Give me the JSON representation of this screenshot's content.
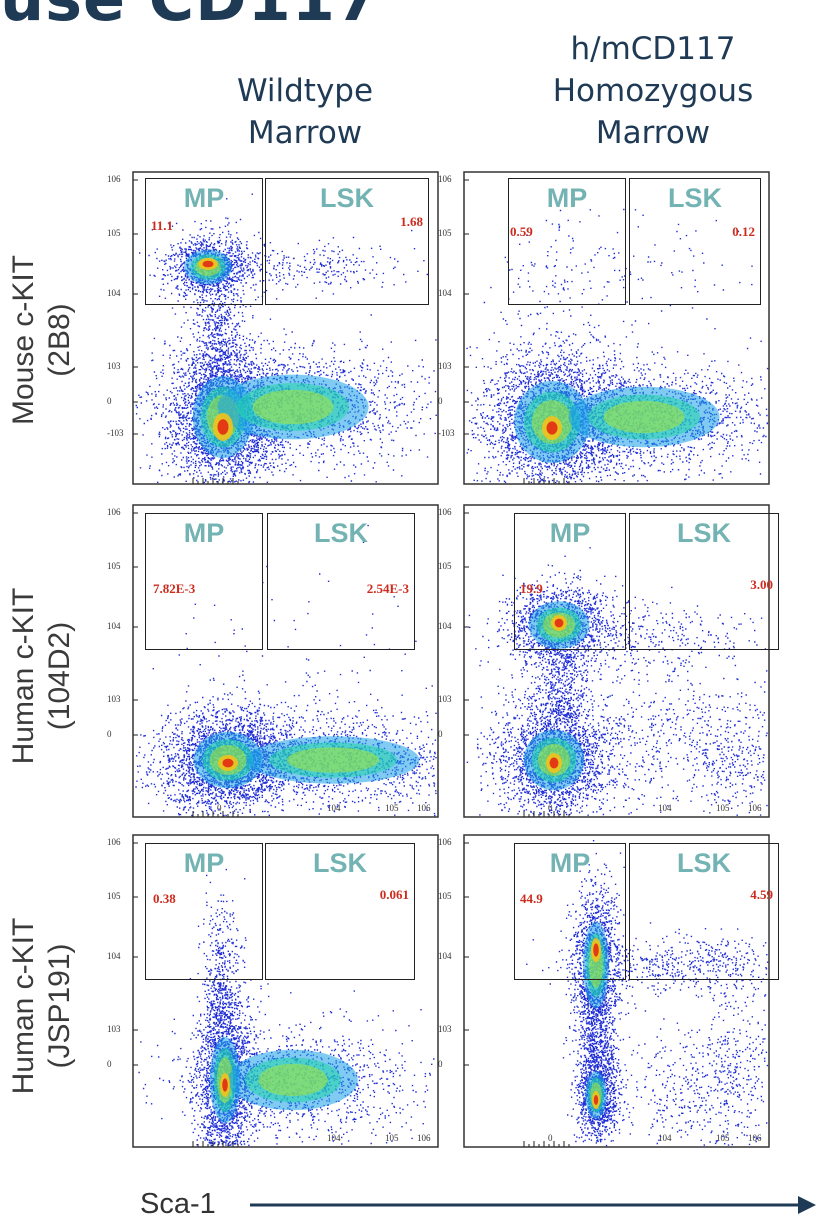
{
  "title_fragment": "use CD117",
  "columns": [
    {
      "lines": [
        "Wildtype",
        "Marrow"
      ]
    },
    {
      "lines": [
        "h/mCD117",
        "Homozygous",
        "Marrow"
      ]
    }
  ],
  "rows": [
    {
      "lines": [
        "Mouse c-KIT",
        "(2B8)"
      ]
    },
    {
      "lines": [
        "Human c-KIT",
        "(104D2)"
      ]
    },
    {
      "lines": [
        "Human c-KIT",
        "(JSP191)"
      ]
    }
  ],
  "x_axis_label": "Sca-1",
  "gate_names": {
    "mp": "MP",
    "lsk": "LSK"
  },
  "colors": {
    "title": "#1f3a55",
    "gate_label": "#74b3b3",
    "frequency": "#cc2b1d",
    "density_scale": [
      "#1f2dd6",
      "#1aa0e8",
      "#22d6a8",
      "#a6e33a",
      "#f2c21b",
      "#e22a14"
    ]
  },
  "chart_data": [
    {
      "type": "scatter",
      "row": "Mouse c-KIT (2B8)",
      "column": "Wildtype Marrow",
      "xlabel": "Sca-1",
      "y_ticks": [
        "10^6",
        "10^5",
        "10^4",
        "10^3",
        "0",
        "-10^3"
      ],
      "x_ticks": [],
      "gates": [
        {
          "name": "MP",
          "frequency": "11.1"
        },
        {
          "name": "LSK",
          "frequency": "1.68"
        }
      ]
    },
    {
      "type": "scatter",
      "row": "Mouse c-KIT (2B8)",
      "column": "h/mCD117 Homozygous Marrow",
      "xlabel": "Sca-1",
      "y_ticks": [
        "10^6",
        "10^5",
        "10^4",
        "10^3",
        "0",
        "-10^3"
      ],
      "x_ticks": [],
      "gates": [
        {
          "name": "MP",
          "frequency": "0.59"
        },
        {
          "name": "LSK",
          "frequency": "0.12"
        }
      ]
    },
    {
      "type": "scatter",
      "row": "Human c-KIT (104D2)",
      "column": "Wildtype Marrow",
      "xlabel": "Sca-1",
      "y_ticks": [
        "10^6",
        "10^5",
        "10^4",
        "10^3",
        "0"
      ],
      "x_ticks": [
        "0",
        "10^4",
        "10^5",
        "10^6"
      ],
      "gates": [
        {
          "name": "MP",
          "frequency": "7.82E-3"
        },
        {
          "name": "LSK",
          "frequency": "2.54E-3"
        }
      ]
    },
    {
      "type": "scatter",
      "row": "Human c-KIT (104D2)",
      "column": "h/mCD117 Homozygous Marrow",
      "xlabel": "Sca-1",
      "y_ticks": [
        "10^6",
        "10^5",
        "10^4",
        "10^3",
        "0"
      ],
      "x_ticks": [
        "0",
        "10^4",
        "10^5",
        "10^6"
      ],
      "gates": [
        {
          "name": "MP",
          "frequency": "19.9"
        },
        {
          "name": "LSK",
          "frequency": "3.00"
        }
      ]
    },
    {
      "type": "scatter",
      "row": "Human c-KIT (JSP191)",
      "column": "Wildtype Marrow",
      "xlabel": "Sca-1",
      "y_ticks": [
        "10^6",
        "10^5",
        "10^4",
        "10^3",
        "0"
      ],
      "x_ticks": [
        "10^4",
        "10^5",
        "10^6"
      ],
      "gates": [
        {
          "name": "MP",
          "frequency": "0.38"
        },
        {
          "name": "LSK",
          "frequency": "0.061"
        }
      ]
    },
    {
      "type": "scatter",
      "row": "Human c-KIT (JSP191)",
      "column": "h/mCD117 Homozygous Marrow",
      "xlabel": "Sca-1",
      "y_ticks": [
        "10^6",
        "10^5",
        "10^4",
        "10^3",
        "0"
      ],
      "x_ticks": [
        "0",
        "10^4",
        "10^5",
        "10^6"
      ],
      "gates": [
        {
          "name": "MP",
          "frequency": "44.9"
        },
        {
          "name": "LSK",
          "frequency": "4.59"
        }
      ]
    }
  ]
}
